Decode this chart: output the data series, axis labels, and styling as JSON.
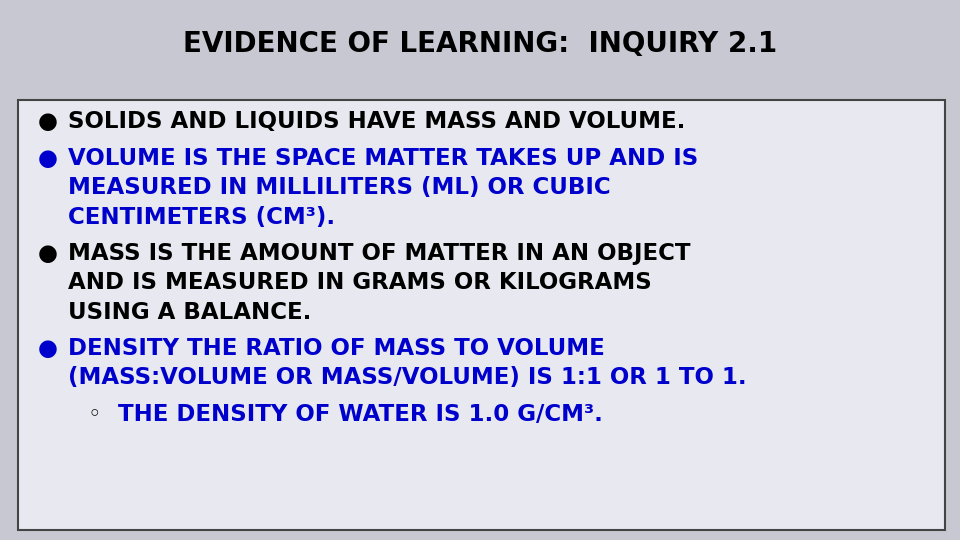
{
  "title": "EVIDENCE OF LEARNING:  INQUIRY 2.1",
  "title_color": "#000000",
  "title_fontsize": 20,
  "title_bold": true,
  "bg_color": "#c8c8d2",
  "box_bg_color": "#e8e8f0",
  "box_edge_color": "#444444",
  "bullet_items": [
    {
      "bullet": "●",
      "bullet_color": "#000000",
      "text": "SOLIDS AND LIQUIDS HAVE MASS AND VOLUME.",
      "text_color": "#000000",
      "indent": 0,
      "fontsize": 16.5,
      "n_lines": 1
    },
    {
      "bullet": "●",
      "bullet_color": "#0000cc",
      "text": "VOLUME IS THE SPACE MATTER TAKES UP AND IS\nMEASURED IN MILLILITERS (ML) OR CUBIC\nCENTIMETERS (CM³).",
      "text_color": "#0000cc",
      "indent": 0,
      "fontsize": 16.5,
      "n_lines": 3
    },
    {
      "bullet": "●",
      "bullet_color": "#000000",
      "text": "MASS IS THE AMOUNT OF MATTER IN AN OBJECT\nAND IS MEASURED IN GRAMS OR KILOGRAMS\nUSING A BALANCE.",
      "text_color": "#000000",
      "indent": 0,
      "fontsize": 16.5,
      "n_lines": 3
    },
    {
      "bullet": "●",
      "bullet_color": "#0000cc",
      "text": "DENSITY THE RATIO OF MASS TO VOLUME\n(MASS:VOLUME OR MASS/VOLUME) IS 1:1 OR 1 TO 1.",
      "text_color": "#0000cc",
      "indent": 0,
      "fontsize": 16.5,
      "n_lines": 2
    },
    {
      "bullet": "◦",
      "bullet_color": "#000000",
      "text": "THE DENSITY OF WATER IS 1.0 G/CM³.",
      "text_color": "#0000cc",
      "indent": 1,
      "fontsize": 16.5,
      "n_lines": 1
    }
  ],
  "fig_width": 9.6,
  "fig_height": 5.4,
  "dpi": 100
}
